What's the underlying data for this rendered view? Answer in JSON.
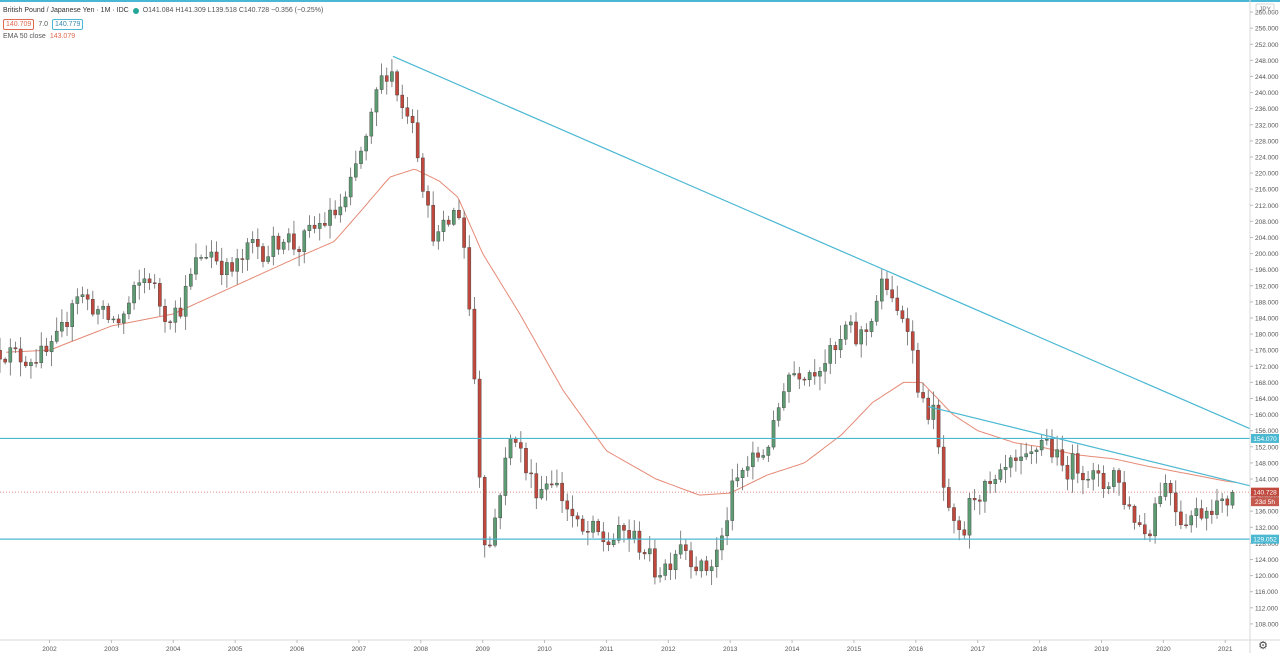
{
  "header": {
    "symbol": "British Pound / Japanese Yen · 1M · IDC",
    "ohlc": "O141.084  H141.309  L139.518  C140.728  −0.356 (−0.25%)",
    "bid": "140.709",
    "spread": "7.0",
    "ask": "140.779",
    "ema_label": "EMA 50 close",
    "ema_value": "143.079"
  },
  "price_axis": {
    "currency": "JPY",
    "last_price_label": "140.728",
    "countdown_label": "23d 5h",
    "hline_labels": [
      "154.070",
      "129.052"
    ]
  },
  "colors": {
    "up": "#5d9b72",
    "down": "#c0483c",
    "ema": "#e58a76",
    "trendline": "#4bb8d2",
    "accent": "#4ab7d4"
  },
  "chart_data": {
    "type": "candlestick",
    "title": "British Pound / Japanese Yen · 1M · IDC",
    "y_axis": {
      "min": 104,
      "max": 262,
      "ticks": [
        108,
        112,
        116,
        120,
        124,
        128,
        132,
        136,
        140,
        144,
        148,
        152,
        156,
        160,
        164,
        168,
        172,
        176,
        180,
        184,
        188,
        192,
        196,
        200,
        204,
        208,
        212,
        216,
        220,
        224,
        228,
        232,
        236,
        240,
        244,
        248,
        252,
        256,
        260
      ]
    },
    "x_axis": {
      "start": 2001.2,
      "end": 2021.4,
      "tick_labels": [
        "2002",
        "2003",
        "2004",
        "2005",
        "2006",
        "2007",
        "2008",
        "2009",
        "2010",
        "2011",
        "2012",
        "2013",
        "2014",
        "2015",
        "2016",
        "2017",
        "2018",
        "2019",
        "2020",
        "2021"
      ]
    },
    "anchors": [
      [
        2001.2,
        176
      ],
      [
        2001.6,
        174
      ],
      [
        2002.0,
        175
      ],
      [
        2002.25,
        182
      ],
      [
        2002.4,
        191
      ],
      [
        2002.7,
        187
      ],
      [
        2002.9,
        184
      ],
      [
        2003.15,
        183
      ],
      [
        2003.4,
        191
      ],
      [
        2003.6,
        195
      ],
      [
        2003.85,
        185
      ],
      [
        2004.1,
        186
      ],
      [
        2004.4,
        199
      ],
      [
        2004.6,
        201
      ],
      [
        2004.9,
        195
      ],
      [
        2005.1,
        198
      ],
      [
        2005.3,
        203
      ],
      [
        2005.5,
        200
      ],
      [
        2005.8,
        205
      ],
      [
        2006.0,
        201
      ],
      [
        2006.2,
        205
      ],
      [
        2006.35,
        207
      ],
      [
        2006.55,
        209
      ],
      [
        2006.8,
        213
      ],
      [
        2007.0,
        224
      ],
      [
        2007.15,
        229
      ],
      [
        2007.3,
        241
      ],
      [
        2007.5,
        247
      ],
      [
        2007.7,
        236
      ],
      [
        2007.85,
        236
      ],
      [
        2007.95,
        226
      ],
      [
        2008.1,
        211
      ],
      [
        2008.25,
        203
      ],
      [
        2008.5,
        209
      ],
      [
        2008.6,
        212
      ],
      [
        2008.7,
        202
      ],
      [
        2008.85,
        174
      ],
      [
        2009.0,
        132
      ],
      [
        2009.1,
        126
      ],
      [
        2009.3,
        143
      ],
      [
        2009.5,
        157
      ],
      [
        2009.7,
        146
      ],
      [
        2009.9,
        141
      ],
      [
        2010.1,
        145
      ],
      [
        2010.4,
        136
      ],
      [
        2010.6,
        130
      ],
      [
        2010.8,
        131
      ],
      [
        2011.0,
        128
      ],
      [
        2011.3,
        131
      ],
      [
        2011.6,
        127
      ],
      [
        2011.8,
        121
      ],
      [
        2012.0,
        123
      ],
      [
        2012.2,
        129
      ],
      [
        2012.4,
        124
      ],
      [
        2012.55,
        121
      ],
      [
        2012.7,
        123
      ],
      [
        2012.9,
        130
      ],
      [
        2013.0,
        140
      ],
      [
        2013.2,
        146
      ],
      [
        2013.4,
        149
      ],
      [
        2013.55,
        151
      ],
      [
        2013.7,
        156
      ],
      [
        2013.9,
        170
      ],
      [
        2014.1,
        171
      ],
      [
        2014.3,
        171
      ],
      [
        2014.55,
        174
      ],
      [
        2014.75,
        176
      ],
      [
        2014.9,
        183
      ],
      [
        2015.0,
        178
      ],
      [
        2015.2,
        181
      ],
      [
        2015.4,
        190
      ],
      [
        2015.5,
        194
      ],
      [
        2015.65,
        185
      ],
      [
        2015.85,
        185
      ],
      [
        2015.95,
        175
      ],
      [
        2016.1,
        162
      ],
      [
        2016.3,
        160
      ],
      [
        2016.4,
        146
      ],
      [
        2016.55,
        133
      ],
      [
        2016.75,
        128
      ],
      [
        2016.9,
        140
      ],
      [
        2017.1,
        141
      ],
      [
        2017.3,
        142
      ],
      [
        2017.5,
        147
      ],
      [
        2017.7,
        147
      ],
      [
        2017.9,
        150
      ],
      [
        2018.05,
        155
      ],
      [
        2018.2,
        151
      ],
      [
        2018.4,
        146
      ],
      [
        2018.55,
        148
      ],
      [
        2018.75,
        146
      ],
      [
        2018.9,
        144
      ],
      [
        2019.05,
        142
      ],
      [
        2019.2,
        146
      ],
      [
        2019.4,
        138
      ],
      [
        2019.6,
        133
      ],
      [
        2019.75,
        130
      ],
      [
        2019.9,
        140
      ],
      [
        2020.0,
        143
      ],
      [
        2020.15,
        141
      ],
      [
        2020.25,
        134
      ],
      [
        2020.45,
        135
      ],
      [
        2020.6,
        136
      ],
      [
        2020.8,
        138
      ],
      [
        2020.95,
        137
      ],
      [
        2021.15,
        141.1
      ]
    ],
    "ema_anchors": [
      [
        2001.3,
        175.5
      ],
      [
        2002.0,
        176
      ],
      [
        2003.0,
        182
      ],
      [
        2004.0,
        185
      ],
      [
        2005.0,
        192
      ],
      [
        2006.0,
        199
      ],
      [
        2006.6,
        203
      ],
      [
        2007.0,
        210
      ],
      [
        2007.5,
        219
      ],
      [
        2007.9,
        221
      ],
      [
        2008.3,
        218
      ],
      [
        2008.6,
        214
      ],
      [
        2009.0,
        200
      ],
      [
        2009.6,
        185
      ],
      [
        2010.3,
        166
      ],
      [
        2011.0,
        151
      ],
      [
        2011.8,
        144
      ],
      [
        2012.5,
        140
      ],
      [
        2013.0,
        140.5
      ],
      [
        2013.6,
        145
      ],
      [
        2014.2,
        148
      ],
      [
        2014.8,
        155
      ],
      [
        2015.3,
        163
      ],
      [
        2015.8,
        168
      ],
      [
        2016.1,
        168
      ],
      [
        2016.6,
        160
      ],
      [
        2017.0,
        156
      ],
      [
        2017.6,
        153
      ],
      [
        2018.0,
        152
      ],
      [
        2018.6,
        150
      ],
      [
        2019.2,
        149
      ],
      [
        2019.8,
        147
      ],
      [
        2020.5,
        145
      ],
      [
        2021.0,
        143.5
      ],
      [
        2021.2,
        143.079
      ]
    ],
    "trendlines": [
      {
        "x1": 2007.55,
        "y1": 249,
        "x2": 2021.4,
        "y2": 156.5
      },
      {
        "x1": 2016.2,
        "y1": 162,
        "x2": 2021.4,
        "y2": 142.3
      }
    ],
    "horizontal_lines": [
      154.07,
      129.052
    ],
    "last_price": 140.728,
    "ema_period": 50,
    "ema_last": 143.079
  }
}
